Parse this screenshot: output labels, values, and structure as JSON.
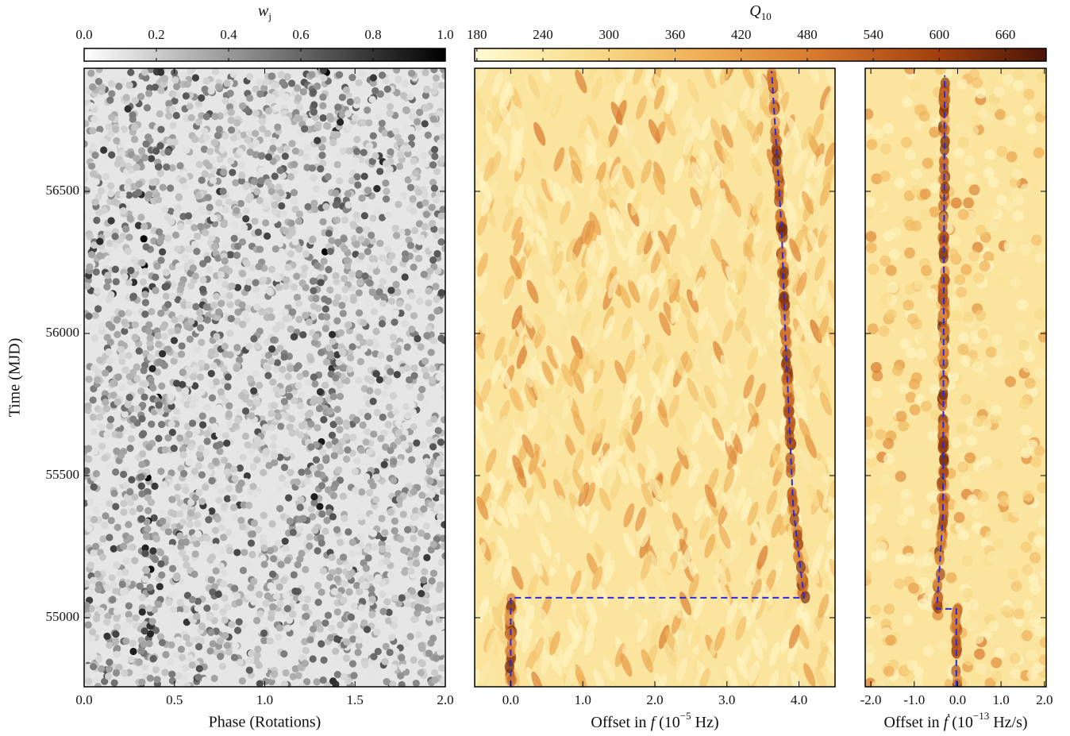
{
  "chart_data": [
    {
      "type": "scatter",
      "xlabel": "Phase (Rotations)",
      "ylabel": "Time (MJD)",
      "xlim": [
        0,
        2
      ],
      "xticks": [
        {
          "value": 0,
          "label": "0.0"
        },
        {
          "value": 0.5,
          "label": "0.5"
        },
        {
          "value": 1,
          "label": "1.0"
        },
        {
          "value": 1.5,
          "label": "1.5"
        },
        {
          "value": 2,
          "label": "2.0"
        }
      ],
      "ylim": [
        54757,
        56933
      ],
      "yticks": [
        55000,
        55500,
        56000,
        56500
      ],
      "colorbar": {
        "title": [
          "w",
          "j"
        ],
        "lim": [
          0,
          1
        ],
        "colors": [
          "#ffffff",
          "#000000"
        ],
        "ticks": [
          {
            "value": 0,
            "label": "0.0"
          },
          {
            "value": 0.2,
            "label": "0.2"
          },
          {
            "value": 0.4,
            "label": "0.4"
          },
          {
            "value": 0.6,
            "label": "0.6"
          },
          {
            "value": 0.8,
            "label": "0.8"
          },
          {
            "value": 1,
            "label": "1.0"
          }
        ]
      }
    },
    {
      "type": "heatmap",
      "xlabel": [
        "Offset in ",
        "f",
        " (10",
        "−5",
        " Hz)"
      ],
      "xlim": [
        -0.5,
        4.5
      ],
      "xticks": [
        {
          "value": 0,
          "label": "0.0"
        },
        {
          "value": 1,
          "label": "1.0"
        },
        {
          "value": 2,
          "label": "2.0"
        },
        {
          "value": 3,
          "label": "3.0"
        },
        {
          "value": 4,
          "label": "4.0"
        }
      ],
      "ylim": [
        54757,
        56933
      ],
      "yticks": [
        55000,
        55500,
        56000,
        56500
      ],
      "series": [
        {
          "color": "#2a2ae0",
          "linestyle": "dashed",
          "x": [
            0,
            0,
            4.07,
            3.92,
            3.81,
            3.76,
            3.62
          ],
          "y": [
            54757,
            55070,
            55070,
            55385,
            56000,
            56363,
            56922
          ]
        }
      ],
      "colorbar": {
        "title": [
          "Q",
          "10"
        ],
        "lim": [
          178,
          697
        ],
        "colors": [
          "#fffbd2",
          "#f8dc8c",
          "#eeae55",
          "#d7782c",
          "#a4420f",
          "#4a1406"
        ],
        "ticks": [
          180,
          240,
          300,
          360,
          420,
          480,
          540,
          600,
          660
        ]
      }
    },
    {
      "type": "heatmap",
      "xlabel": [
        "Offset in ",
        "ḟ",
        " (10",
        "−13",
        " Hz/s)"
      ],
      "xlim": [
        -2.13,
        2.04
      ],
      "xticks": [
        {
          "value": -2,
          "label": "-2.0"
        },
        {
          "value": -1,
          "label": "-1.0"
        },
        {
          "value": 0,
          "label": "0.0"
        },
        {
          "value": 1,
          "label": "1.0"
        },
        {
          "value": 2,
          "label": "2.0"
        }
      ],
      "ylim": [
        54757,
        56933
      ],
      "yticks": [
        55000,
        55500,
        56000,
        56500
      ],
      "series": [
        {
          "color": "#2a2ae0",
          "linestyle": "dashed",
          "x": [
            -0.03,
            -0.03,
            -0.48,
            -0.34,
            -0.3
          ],
          "y": [
            54757,
            55031,
            55031,
            55358,
            56908
          ]
        }
      ]
    }
  ]
}
